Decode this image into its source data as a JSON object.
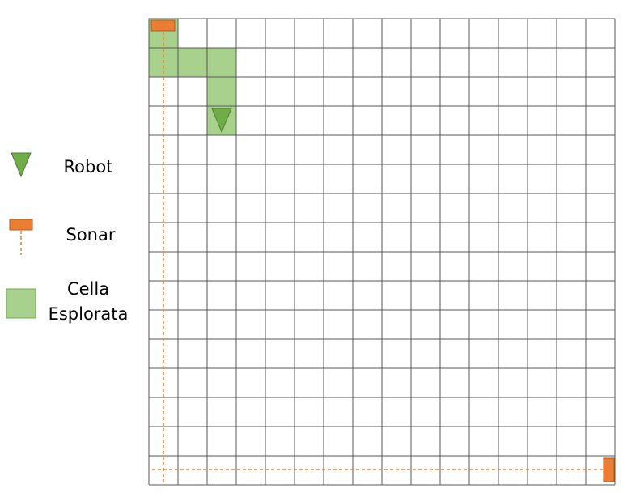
{
  "grid": {
    "rows": 16,
    "cols": 16,
    "line_color": "#595959",
    "background": "#ffffff"
  },
  "colors": {
    "robot": "#70ad47",
    "robot_stroke": "#507e32",
    "explored_cell": "#a9d18e",
    "explored_stroke": "#70ad47",
    "sonar": "#ed7d31",
    "sonar_stroke": "#ae5a21"
  },
  "explored_cells": [
    {
      "row": 0,
      "col": 0
    },
    {
      "row": 1,
      "col": 0
    },
    {
      "row": 1,
      "col": 1
    },
    {
      "row": 1,
      "col": 2
    },
    {
      "row": 2,
      "col": 2
    },
    {
      "row": 3,
      "col": 2
    }
  ],
  "robot": {
    "row": 3,
    "col": 2,
    "heading": "down"
  },
  "sonars": [
    {
      "row": 0,
      "col": 0,
      "orientation": "horizontal",
      "beam": "down"
    },
    {
      "row": 15,
      "col": 15,
      "orientation": "vertical",
      "beam": "left"
    }
  ],
  "legend": {
    "robot_label": "Robot",
    "sonar_label": "Sonar",
    "explored_label_line1": "Cella",
    "explored_label_line2": "Esplorata"
  }
}
